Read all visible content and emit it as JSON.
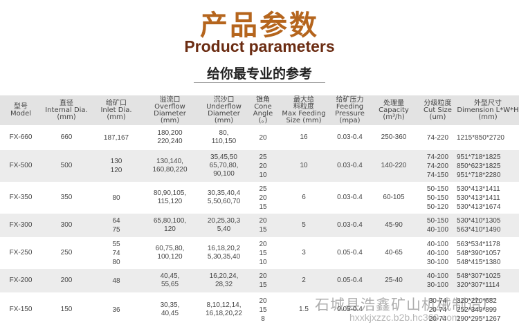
{
  "header": {
    "title_cn": "产品参数",
    "title_en": "Product parameters",
    "subtitle": "给你最专业的参考"
  },
  "table": {
    "columns": [
      [
        "型号",
        "Model"
      ],
      [
        "直径",
        "Internal Dia.",
        "(mm)"
      ],
      [
        "给矿口",
        "Inlet Dia.",
        "(mm)"
      ],
      [
        "溢流口",
        "Overflow",
        "Diameter",
        "(mm)"
      ],
      [
        "沉沙口",
        "Underflow",
        "Diameter",
        "(mm)"
      ],
      [
        "锥角",
        "Cone",
        "Angle",
        "(。)"
      ],
      [
        "最大给",
        "料粒度",
        "Max Feeding",
        "Size  (mm)"
      ],
      [
        "给矿压力",
        "Feeding",
        "Pressure",
        "(mpa)"
      ],
      [
        "处理量",
        "Capacity",
        "(m³/h)"
      ],
      [
        "分级粒度",
        "Cut Size",
        "(um)"
      ],
      [
        "外型尺寸",
        "Dimension L*W*H",
        "(mm)"
      ]
    ],
    "rows": [
      {
        "model": "FX-660",
        "dia": "660",
        "inlet": [
          "187,167"
        ],
        "overflow": [
          "180,200",
          "220,240"
        ],
        "underflow": [
          "80,",
          "110,150"
        ],
        "cone": [
          "20"
        ],
        "maxfeed": "16",
        "pressure": "0.03-0.4",
        "capacity": "250-360",
        "cut": [
          "74-220"
        ],
        "dim": [
          "1215*850*2720"
        ]
      },
      {
        "model": "FX-500",
        "dia": "500",
        "inlet": [
          "130",
          "120"
        ],
        "overflow": [
          "130,140,",
          "160,80,220"
        ],
        "underflow": [
          "35,45,50",
          "65,70,80,",
          "90,100"
        ],
        "cone": [
          "25",
          "20",
          "10"
        ],
        "maxfeed": "10",
        "pressure": "0.03-0.4",
        "capacity": "140-220",
        "cut": [
          "74-200",
          "74-200",
          "74-150"
        ],
        "dim": [
          "951*718*1825",
          "850*623*1825",
          "951*718*2280"
        ]
      },
      {
        "model": "FX-350",
        "dia": "350",
        "inlet": [
          "80"
        ],
        "overflow": [
          "80,90,105,",
          "115,120"
        ],
        "underflow": [
          "30,35,40,4",
          "5,50,60,70"
        ],
        "cone": [
          "25",
          "20",
          "15"
        ],
        "maxfeed": "6",
        "pressure": "0.03-0.4",
        "capacity": "60-105",
        "cut": [
          "50-150",
          "50-150",
          "50-120"
        ],
        "dim": [
          "530*413*1411",
          "530*413*1411",
          "530*413*1674"
        ]
      },
      {
        "model": "FX-300",
        "dia": "300",
        "inlet": [
          "64",
          "75"
        ],
        "overflow": [
          "65,80,100,",
          "120"
        ],
        "underflow": [
          "20,25,30,3",
          "5,40"
        ],
        "cone": [
          "20",
          "15"
        ],
        "maxfeed": "5",
        "pressure": "0.03-0.4",
        "capacity": "45-90",
        "cut": [
          "50-150",
          "40-100"
        ],
        "dim": [
          "530*410*1305",
          "563*410*1490"
        ]
      },
      {
        "model": "FX-250",
        "dia": "250",
        "inlet": [
          "55",
          "74",
          "80"
        ],
        "overflow": [
          "60,75,80,",
          "100,120"
        ],
        "underflow": [
          "16,18,20,2",
          "5,30,35,40"
        ],
        "cone": [
          "20",
          "15",
          "10"
        ],
        "maxfeed": "3",
        "pressure": "0.05-0.4",
        "capacity": "40-65",
        "cut": [
          "40-100",
          "40-100",
          "30-100"
        ],
        "dim": [
          "563*534*1178",
          "548*390*1057",
          "548*415*1380"
        ]
      },
      {
        "model": "FX-200",
        "dia": "200",
        "inlet": [
          "48"
        ],
        "overflow": [
          "40,45,",
          "55,65"
        ],
        "underflow": [
          "16,20,24,",
          "28,32"
        ],
        "cone": [
          "20",
          "15"
        ],
        "maxfeed": "2",
        "pressure": "0.05-0.4",
        "capacity": "25-40",
        "cut": [
          "40-100",
          "30-100"
        ],
        "dim": [
          "548*307*1025",
          "320*307*1114"
        ]
      },
      {
        "model": "FX-150",
        "dia": "150",
        "inlet": [
          "36"
        ],
        "overflow": [
          "30,35,",
          "40,45"
        ],
        "underflow": [
          "8,10,12,14,",
          "16,18,20,22"
        ],
        "cone": [
          "20",
          "15",
          "8"
        ],
        "maxfeed": "1.5",
        "pressure": "0.05-0.4",
        "capacity": "",
        "cut": [
          "30-74",
          "20-74",
          "20-74"
        ],
        "dim": [
          "320*270*682",
          "252*349*899",
          "290*295*1267"
        ]
      }
    ]
  },
  "watermark": {
    "line1": "石城县浩鑫矿山机械制造厂",
    "line2": "hxxkjxzzc.b2b.hc360.com"
  }
}
